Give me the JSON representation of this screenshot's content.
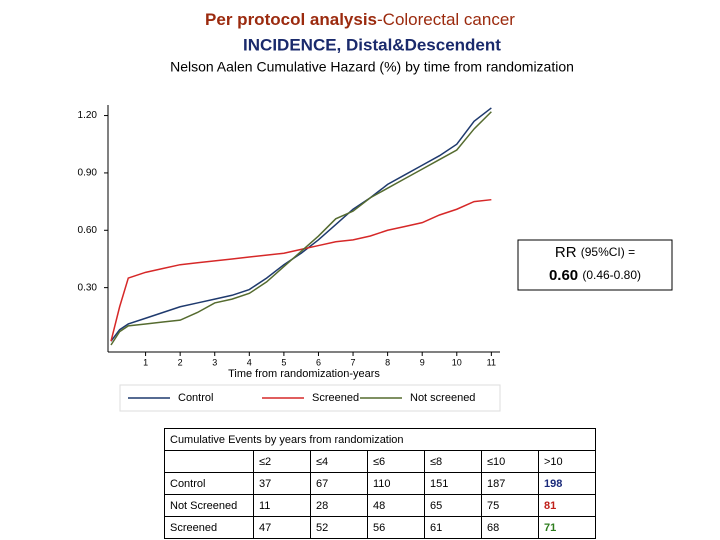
{
  "chart_data": {
    "type": "line",
    "title": "Per protocol analysis",
    "title_suffix": "-Colorectal cancer",
    "subtitle": "INCIDENCE, Distal&Descendent",
    "caption": "Nelson Aalen Cumulative Hazard (%) by time from randomization",
    "x_label": "Time from randomization-years",
    "x": [
      0,
      0.25,
      0.5,
      1,
      1.5,
      2,
      2.5,
      3,
      3.5,
      4,
      4.5,
      5,
      5.5,
      6,
      6.5,
      7,
      7.5,
      8,
      8.5,
      9,
      9.5,
      10,
      10.5,
      11
    ],
    "series": [
      {
        "name": "Control",
        "color": "#1f3a6e",
        "values": [
          0.02,
          0.08,
          0.11,
          0.14,
          0.17,
          0.2,
          0.22,
          0.24,
          0.26,
          0.29,
          0.35,
          0.42,
          0.48,
          0.55,
          0.63,
          0.71,
          0.77,
          0.84,
          0.89,
          0.94,
          0.99,
          1.05,
          1.17,
          1.24
        ]
      },
      {
        "name": "Screened",
        "color": "#d62828",
        "values": [
          0.02,
          0.2,
          0.35,
          0.38,
          0.4,
          0.42,
          0.43,
          0.44,
          0.45,
          0.46,
          0.47,
          0.48,
          0.5,
          0.52,
          0.54,
          0.55,
          0.57,
          0.6,
          0.62,
          0.64,
          0.68,
          0.71,
          0.75,
          0.76
        ]
      },
      {
        "name": "Not screened",
        "color": "#556b2f",
        "values": [
          0.0,
          0.07,
          0.1,
          0.11,
          0.12,
          0.13,
          0.17,
          0.22,
          0.24,
          0.27,
          0.33,
          0.41,
          0.49,
          0.57,
          0.66,
          0.7,
          0.77,
          0.82,
          0.87,
          0.92,
          0.97,
          1.02,
          1.13,
          1.22
        ]
      }
    ],
    "xlim": [
      0,
      11.25
    ],
    "xticks": [
      1,
      2,
      3,
      4,
      5,
      6,
      7,
      8,
      9,
      10,
      11
    ],
    "ylim": [
      0,
      1.25
    ],
    "yticks": [
      {
        "value": 0.3,
        "label": "0.30"
      },
      {
        "value": 0.6,
        "label": "0.60"
      },
      {
        "value": 0.9,
        "label": "0.90"
      },
      {
        "value": 1.2,
        "label": "1.20"
      }
    ],
    "grid": false,
    "legend": "bottom",
    "annotation": {
      "rr": "RR",
      "rr_ci_label": "(95%CI) =",
      "rr_value": "0.60",
      "rr_ci": "(0.46-0.80)"
    }
  },
  "table": {
    "caption": "Cumulative Events by years from randomization",
    "header": [
      "≤2",
      "≤4",
      "≤6",
      "≤8",
      "≤10",
      ">10"
    ],
    "rows": [
      [
        "Control",
        "37",
        "67",
        "110",
        "151",
        "187",
        "198"
      ],
      [
        "Not Screened",
        "11",
        "28",
        "48",
        "65",
        "75",
        "81"
      ],
      [
        "Screened",
        "47",
        "52",
        "56",
        "61",
        "68",
        "71"
      ]
    ]
  }
}
